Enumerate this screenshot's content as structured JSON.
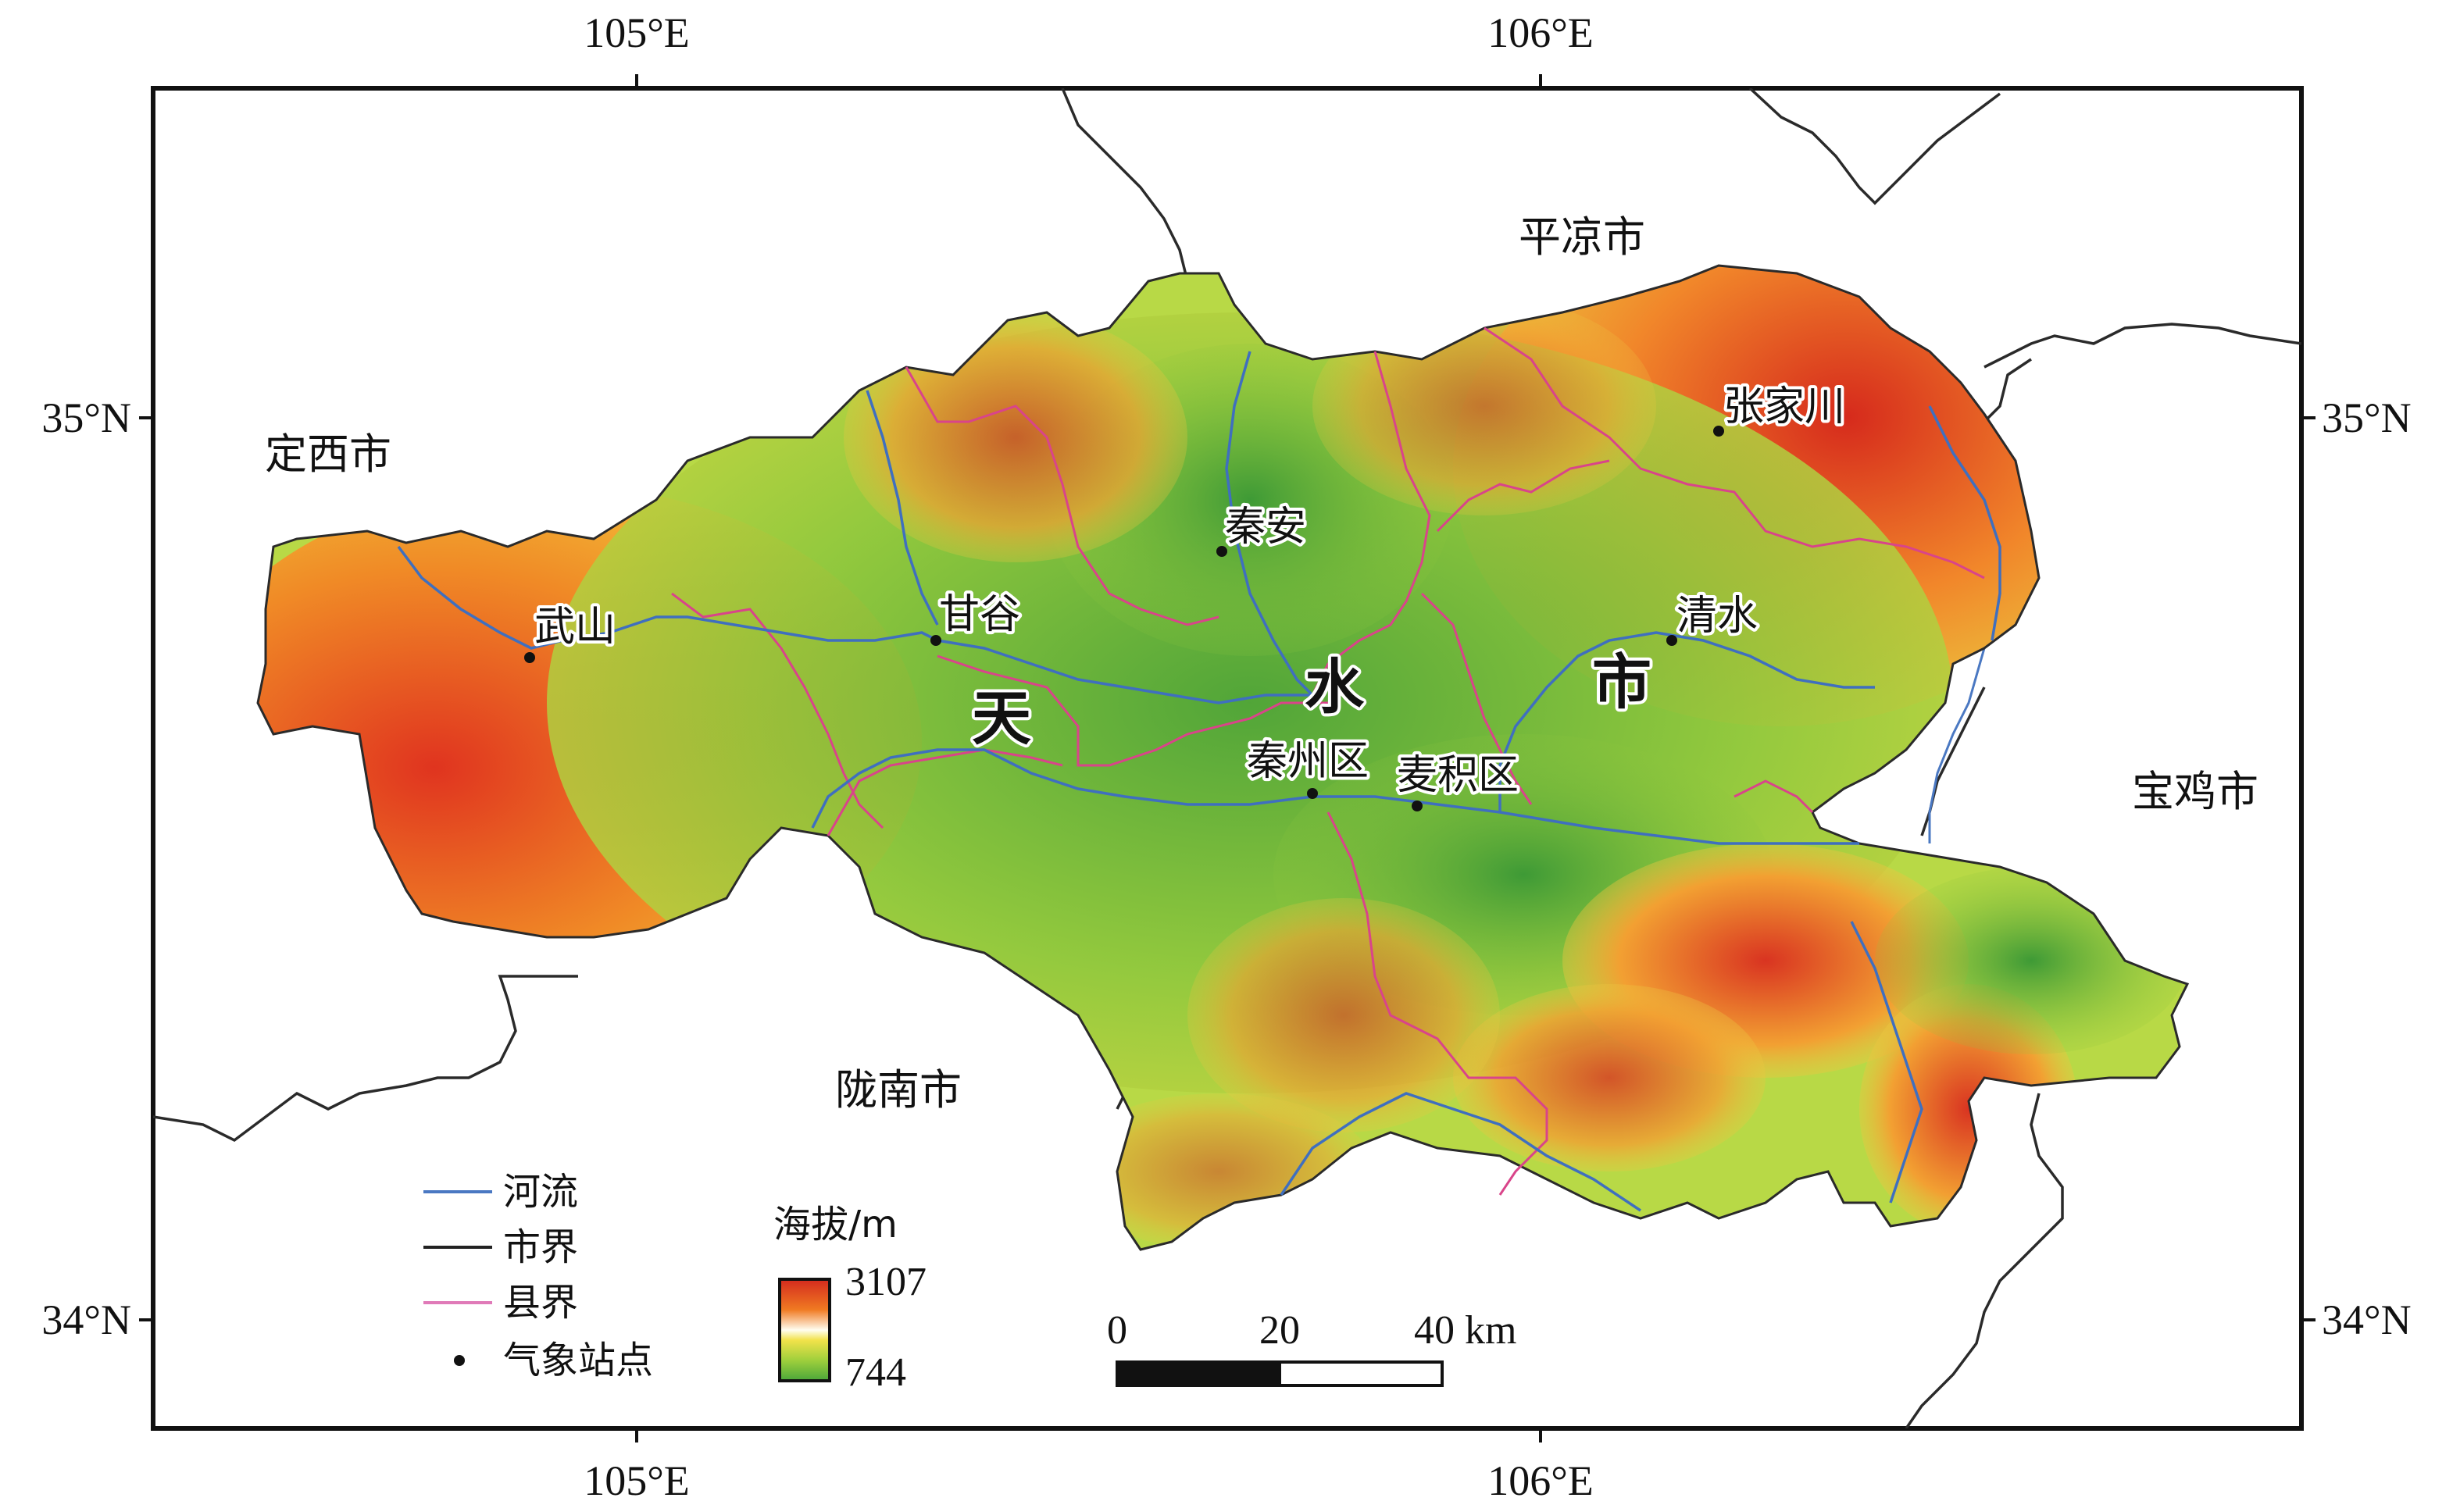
{
  "map": {
    "ticks": {
      "top": [
        "105°E",
        "106°E"
      ],
      "bottom": [
        "105°E",
        "106°E"
      ],
      "left": [
        "35°N",
        "34°N"
      ],
      "right": [
        "35°N",
        "34°N"
      ]
    },
    "neighbors": {
      "north": "平凉市",
      "west": "定西市",
      "east": "宝鸡市",
      "south": "陇南市"
    },
    "region_chars": [
      "天",
      "水",
      "市"
    ],
    "stations": [
      {
        "name": "武山"
      },
      {
        "name": "甘谷"
      },
      {
        "name": "秦安"
      },
      {
        "name": "张家川"
      },
      {
        "name": "清水"
      },
      {
        "name": "秦州区"
      },
      {
        "name": "麦积区"
      }
    ],
    "legend": {
      "items": [
        {
          "label": "河流",
          "color": "#4a78c2",
          "kind": "line"
        },
        {
          "label": "市界",
          "color": "#222222",
          "kind": "line"
        },
        {
          "label": "县界",
          "color": "#e07ab8",
          "kind": "line"
        },
        {
          "label": "气象站点",
          "color": "#111111",
          "kind": "dot"
        }
      ]
    },
    "elevation": {
      "title": "海拔/m",
      "max_label": "3107",
      "min_label": "744",
      "colors": [
        "#d42a1e",
        "#f07a22",
        "#f6e64a",
        "#9ecf3c",
        "#4aa63a"
      ]
    },
    "scale_bar": {
      "labels": [
        "0",
        "20",
        "40 km"
      ]
    }
  }
}
